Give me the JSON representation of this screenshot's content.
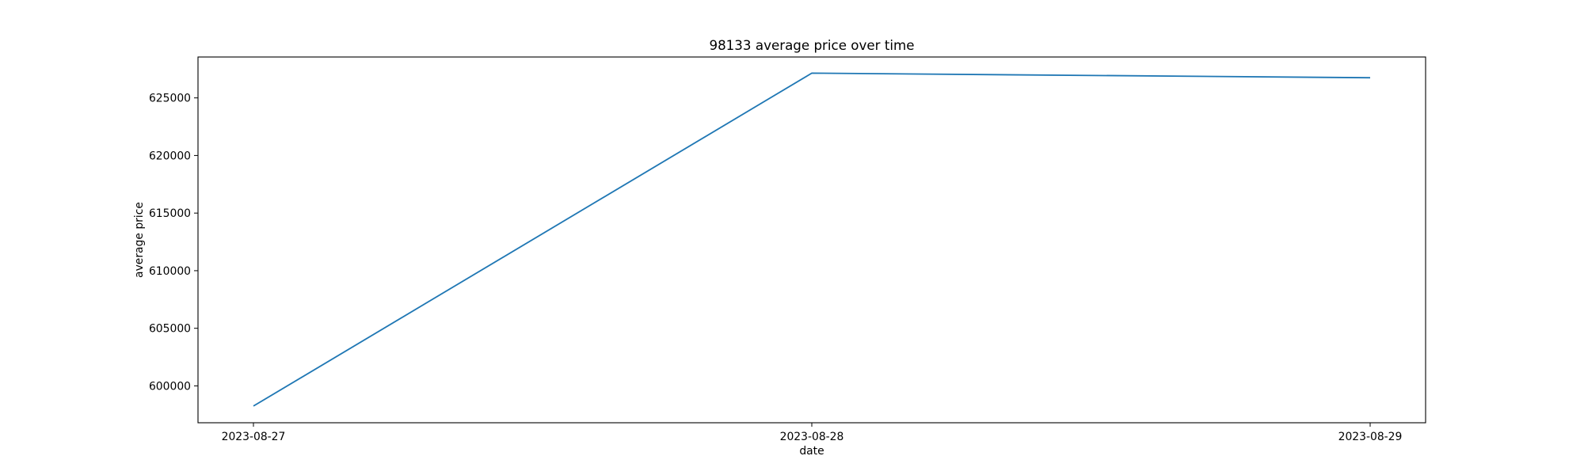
{
  "chart_data": {
    "type": "line",
    "title": "98133 average price over time",
    "xlabel": "date",
    "ylabel": "average price",
    "x": [
      "2023-08-27",
      "2023-08-28",
      "2023-08-29"
    ],
    "xticks": [
      "2023-08-27",
      "2023-08-28",
      "2023-08-29"
    ],
    "yticks": [
      600000,
      605000,
      610000,
      615000,
      620000,
      625000
    ],
    "ylim": [
      596800,
      628550
    ],
    "grid": false,
    "series": [
      {
        "values": [
          598250,
          627150,
          626750
        ],
        "color": "#1f77b4"
      }
    ]
  }
}
